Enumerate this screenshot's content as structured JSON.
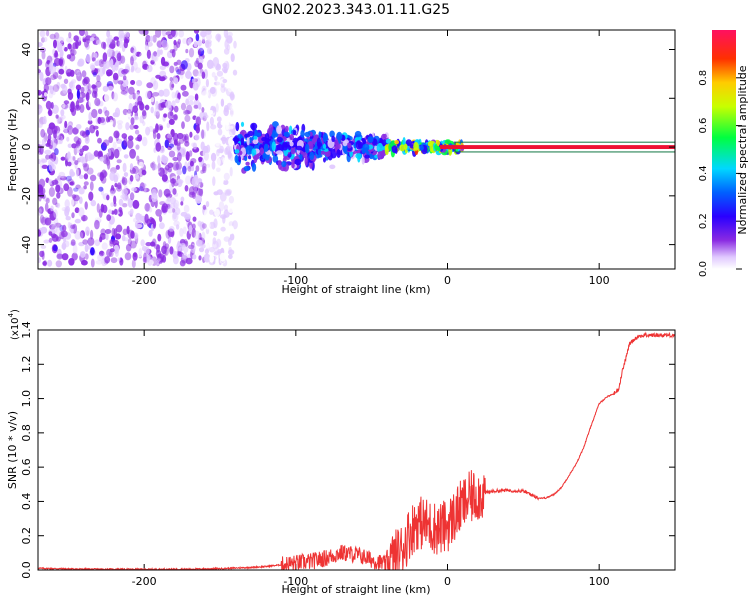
{
  "figure": {
    "title": "GN02.2023.343.01.11.G25"
  },
  "colors": {
    "snr_line": "#ee3333",
    "grid_band_fill": "#ee1133",
    "band_outline": "#117744"
  },
  "chart_data": [
    {
      "type": "heatmap",
      "xlabel": "Height of straight line (km)",
      "ylabel": "Frequency (Hz)",
      "xlim": [
        -270,
        150
      ],
      "ylim": [
        -50,
        48
      ],
      "xticks": [
        -200,
        -100,
        0,
        100
      ],
      "yticks": [
        -40,
        -20,
        0,
        20,
        40
      ],
      "colorbar": {
        "label": "Normalized spectral amplitude",
        "range": [
          0.0,
          1.0
        ],
        "ticks": [
          "0.0",
          "0.2",
          "0.4",
          "0.6",
          "0.8"
        ],
        "colormap": [
          "#ffffff",
          "#d9b8ff",
          "#8a2be2",
          "#3b00ff",
          "#0000ff",
          "#00bfff",
          "#00ff66",
          "#7cff00",
          "#ffff00",
          "#ff8800",
          "#ff0000",
          "#ff1493"
        ]
      },
      "description_regions": [
        {
          "x_range": [
            -270,
            -140
          ],
          "freq_spread": 48,
          "amplitude": 0.15
        },
        {
          "x_range": [
            -140,
            -40
          ],
          "freq_spread": 12,
          "amplitude": 0.3
        },
        {
          "x_range": [
            -40,
            10
          ],
          "freq_spread": 3,
          "amplitude": 0.6
        },
        {
          "x_range": [
            10,
            150
          ],
          "freq_spread": 1,
          "amplitude": 0.95
        }
      ]
    },
    {
      "type": "line",
      "xlabel": "Height of straight line (km)",
      "ylabel": "SNR (10 * v/v)",
      "scale_label": "(x10",
      "scale_exponent": "4",
      "scale_close": ")",
      "xlim": [
        -270,
        150
      ],
      "ylim": [
        0,
        1.4
      ],
      "xticks": [
        -200,
        -100,
        0,
        100
      ],
      "yticks": [
        "0.0",
        "0.2",
        "0.4",
        "0.6",
        "0.8",
        "1.0",
        "1.2",
        "1.4"
      ],
      "series": [
        {
          "x": [
            -270,
            -240,
            -200,
            -170,
            -150,
            -130,
            -120,
            -110,
            -100,
            -90,
            -80,
            -70,
            -60,
            -50,
            -40,
            -30,
            -25,
            -20,
            -15,
            -10,
            -5,
            0,
            5,
            10,
            15,
            20,
            25,
            30,
            40,
            50,
            55,
            60,
            65,
            70,
            75,
            80,
            85,
            90,
            95,
            100,
            105,
            110,
            113,
            115,
            118,
            120,
            125,
            130,
            140,
            150
          ],
          "y": [
            0.01,
            0.005,
            0.004,
            0.005,
            0.008,
            0.015,
            0.02,
            0.03,
            0.04,
            0.05,
            0.07,
            0.1,
            0.09,
            0.06,
            0.03,
            0.12,
            0.22,
            0.28,
            0.27,
            0.25,
            0.24,
            0.26,
            0.32,
            0.38,
            0.42,
            0.44,
            0.45,
            0.46,
            0.465,
            0.46,
            0.44,
            0.42,
            0.42,
            0.44,
            0.48,
            0.55,
            0.62,
            0.72,
            0.85,
            0.97,
            1.01,
            1.03,
            1.06,
            1.15,
            1.25,
            1.32,
            1.36,
            1.37,
            1.37,
            1.37
          ]
        }
      ]
    }
  ]
}
